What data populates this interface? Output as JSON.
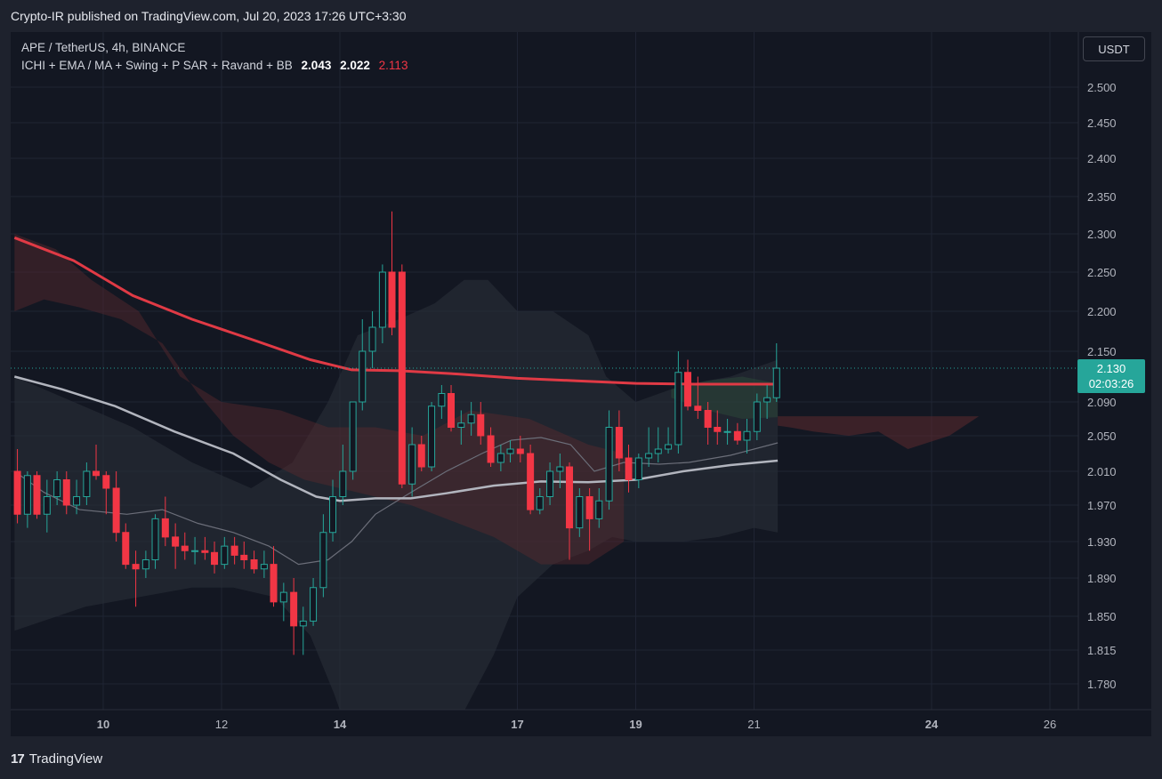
{
  "header": {
    "published_text": "Crypto-IR published on TradingView.com, Jul 20, 2023 17:26 UTC+3:30"
  },
  "legend": {
    "symbol_line": "APE / TetherUS, 4h, BINANCE",
    "indicators_label": "ICHI + EMA / MA + Swing + P SAR + Ravand  + BB",
    "value_a": "2.043",
    "value_b": "2.022",
    "value_c": "2.113"
  },
  "currency_button": "USDT",
  "price_tag": {
    "price": "2.130",
    "countdown": "02:03:26"
  },
  "footer": {
    "brand": "TradingView",
    "brand_mark": "17"
  },
  "colors": {
    "background": "#131722",
    "bull": "#26a69a",
    "bear": "#f23645",
    "ema": "#e03a45",
    "ma": "#b2b5be",
    "cloud_bear": "#5c2a2e",
    "cloud_bull": "#2c4a3a"
  },
  "chart_data": {
    "type": "candlestick",
    "symbol": "APE / TetherUS",
    "timeframe": "4h",
    "exchange": "BINANCE",
    "y_ticks": [
      "2.500",
      "2.450",
      "2.400",
      "2.350",
      "2.300",
      "2.250",
      "2.200",
      "2.150",
      "2.090",
      "2.050",
      "2.010",
      "1.970",
      "1.930",
      "1.890",
      "1.850",
      "1.815",
      "1.780"
    ],
    "x_ticks": [
      "10",
      "12",
      "14",
      "17",
      "19",
      "21",
      "24",
      "26"
    ],
    "current_price": 2.13,
    "candles": [
      {
        "x": 8.55,
        "o": 2.01,
        "h": 2.035,
        "l": 1.95,
        "c": 1.96
      },
      {
        "x": 8.72,
        "o": 1.96,
        "h": 2.01,
        "l": 1.945,
        "c": 2.005
      },
      {
        "x": 8.88,
        "o": 2.005,
        "h": 2.01,
        "l": 1.955,
        "c": 1.96
      },
      {
        "x": 9.05,
        "o": 1.96,
        "h": 2.0,
        "l": 1.94,
        "c": 1.98
      },
      {
        "x": 9.22,
        "o": 1.98,
        "h": 2.01,
        "l": 1.97,
        "c": 2.0
      },
      {
        "x": 9.38,
        "o": 2.0,
        "h": 2.01,
        "l": 1.96,
        "c": 1.97
      },
      {
        "x": 9.55,
        "o": 1.97,
        "h": 2.0,
        "l": 1.96,
        "c": 1.98
      },
      {
        "x": 9.72,
        "o": 1.98,
        "h": 2.02,
        "l": 1.97,
        "c": 2.01
      },
      {
        "x": 9.88,
        "o": 2.01,
        "h": 2.04,
        "l": 2.0,
        "c": 2.005
      },
      {
        "x": 10.05,
        "o": 2.005,
        "h": 2.01,
        "l": 1.96,
        "c": 1.99
      },
      {
        "x": 10.22,
        "o": 1.99,
        "h": 2.01,
        "l": 1.93,
        "c": 1.94
      },
      {
        "x": 10.38,
        "o": 1.94,
        "h": 1.95,
        "l": 1.9,
        "c": 1.905
      },
      {
        "x": 10.55,
        "o": 1.905,
        "h": 1.92,
        "l": 1.86,
        "c": 1.9
      },
      {
        "x": 10.72,
        "o": 1.9,
        "h": 1.92,
        "l": 1.89,
        "c": 1.91
      },
      {
        "x": 10.88,
        "o": 1.91,
        "h": 1.96,
        "l": 1.9,
        "c": 1.955
      },
      {
        "x": 11.05,
        "o": 1.955,
        "h": 1.98,
        "l": 1.925,
        "c": 1.935
      },
      {
        "x": 11.22,
        "o": 1.935,
        "h": 1.95,
        "l": 1.9,
        "c": 1.925
      },
      {
        "x": 11.38,
        "o": 1.925,
        "h": 1.94,
        "l": 1.91,
        "c": 1.92
      },
      {
        "x": 11.55,
        "o": 1.92,
        "h": 1.935,
        "l": 1.905,
        "c": 1.92
      },
      {
        "x": 11.72,
        "o": 1.92,
        "h": 1.935,
        "l": 1.91,
        "c": 1.918
      },
      {
        "x": 11.88,
        "o": 1.918,
        "h": 1.93,
        "l": 1.895,
        "c": 1.905
      },
      {
        "x": 12.05,
        "o": 1.905,
        "h": 1.935,
        "l": 1.9,
        "c": 1.925
      },
      {
        "x": 12.22,
        "o": 1.925,
        "h": 1.935,
        "l": 1.905,
        "c": 1.915
      },
      {
        "x": 12.38,
        "o": 1.915,
        "h": 1.93,
        "l": 1.9,
        "c": 1.91
      },
      {
        "x": 12.55,
        "o": 1.91,
        "h": 1.92,
        "l": 1.895,
        "c": 1.9
      },
      {
        "x": 12.72,
        "o": 1.9,
        "h": 1.92,
        "l": 1.89,
        "c": 1.905
      },
      {
        "x": 12.88,
        "o": 1.905,
        "h": 1.925,
        "l": 1.86,
        "c": 1.865
      },
      {
        "x": 13.05,
        "o": 1.865,
        "h": 1.885,
        "l": 1.845,
        "c": 1.875
      },
      {
        "x": 13.22,
        "o": 1.875,
        "h": 1.89,
        "l": 1.81,
        "c": 1.84
      },
      {
        "x": 13.38,
        "o": 1.84,
        "h": 1.86,
        "l": 1.81,
        "c": 1.845
      },
      {
        "x": 13.55,
        "o": 1.845,
        "h": 1.89,
        "l": 1.84,
        "c": 1.88
      },
      {
        "x": 13.72,
        "o": 1.88,
        "h": 1.96,
        "l": 1.87,
        "c": 1.94
      },
      {
        "x": 13.88,
        "o": 1.94,
        "h": 2.0,
        "l": 1.93,
        "c": 1.98
      },
      {
        "x": 14.05,
        "o": 1.98,
        "h": 2.04,
        "l": 1.97,
        "c": 2.01
      },
      {
        "x": 14.22,
        "o": 2.01,
        "h": 2.09,
        "l": 2.0,
        "c": 2.09
      },
      {
        "x": 14.38,
        "o": 2.09,
        "h": 2.19,
        "l": 2.08,
        "c": 2.15
      },
      {
        "x": 14.55,
        "o": 2.15,
        "h": 2.2,
        "l": 2.13,
        "c": 2.18
      },
      {
        "x": 14.72,
        "o": 2.18,
        "h": 2.26,
        "l": 2.16,
        "c": 2.25
      },
      {
        "x": 14.88,
        "o": 2.25,
        "h": 2.33,
        "l": 2.17,
        "c": 2.18
      },
      {
        "x": 15.05,
        "o": 2.25,
        "h": 2.26,
        "l": 1.99,
        "c": 1.995
      },
      {
        "x": 15.22,
        "o": 1.995,
        "h": 2.06,
        "l": 1.98,
        "c": 2.04
      },
      {
        "x": 15.38,
        "o": 2.04,
        "h": 2.05,
        "l": 2.01,
        "c": 2.015
      },
      {
        "x": 15.55,
        "o": 2.015,
        "h": 2.09,
        "l": 2.01,
        "c": 2.085
      },
      {
        "x": 15.72,
        "o": 2.085,
        "h": 2.11,
        "l": 2.07,
        "c": 2.1
      },
      {
        "x": 15.88,
        "o": 2.1,
        "h": 2.11,
        "l": 2.055,
        "c": 2.06
      },
      {
        "x": 16.05,
        "o": 2.06,
        "h": 2.08,
        "l": 2.04,
        "c": 2.065
      },
      {
        "x": 16.22,
        "o": 2.065,
        "h": 2.09,
        "l": 2.05,
        "c": 2.075
      },
      {
        "x": 16.38,
        "o": 2.075,
        "h": 2.09,
        "l": 2.04,
        "c": 2.05
      },
      {
        "x": 16.55,
        "o": 2.05,
        "h": 2.06,
        "l": 2.015,
        "c": 2.02
      },
      {
        "x": 16.72,
        "o": 2.02,
        "h": 2.04,
        "l": 2.01,
        "c": 2.03
      },
      {
        "x": 16.88,
        "o": 2.03,
        "h": 2.045,
        "l": 2.02,
        "c": 2.035
      },
      {
        "x": 17.05,
        "o": 2.035,
        "h": 2.05,
        "l": 2.02,
        "c": 2.03
      },
      {
        "x": 17.22,
        "o": 2.03,
        "h": 2.04,
        "l": 1.96,
        "c": 1.965
      },
      {
        "x": 17.38,
        "o": 1.965,
        "h": 1.99,
        "l": 1.96,
        "c": 1.98
      },
      {
        "x": 17.55,
        "o": 1.98,
        "h": 2.02,
        "l": 1.97,
        "c": 2.01
      },
      {
        "x": 17.72,
        "o": 2.01,
        "h": 2.03,
        "l": 1.99,
        "c": 2.015
      },
      {
        "x": 17.88,
        "o": 2.015,
        "h": 2.02,
        "l": 1.91,
        "c": 1.945
      },
      {
        "x": 18.05,
        "o": 1.945,
        "h": 1.99,
        "l": 1.935,
        "c": 1.98
      },
      {
        "x": 18.22,
        "o": 1.98,
        "h": 1.99,
        "l": 1.92,
        "c": 1.955
      },
      {
        "x": 18.38,
        "o": 1.955,
        "h": 1.99,
        "l": 1.945,
        "c": 1.975
      },
      {
        "x": 18.55,
        "o": 1.975,
        "h": 2.08,
        "l": 1.965,
        "c": 2.06
      },
      {
        "x": 18.72,
        "o": 2.06,
        "h": 2.08,
        "l": 2.01,
        "c": 2.025
      },
      {
        "x": 18.88,
        "o": 2.025,
        "h": 2.04,
        "l": 1.985,
        "c": 2.0
      },
      {
        "x": 19.05,
        "o": 2.0,
        "h": 2.03,
        "l": 1.99,
        "c": 2.025
      },
      {
        "x": 19.22,
        "o": 2.025,
        "h": 2.06,
        "l": 2.015,
        "c": 2.03
      },
      {
        "x": 19.38,
        "o": 2.03,
        "h": 2.06,
        "l": 2.02,
        "c": 2.035
      },
      {
        "x": 19.55,
        "o": 2.035,
        "h": 2.06,
        "l": 2.03,
        "c": 2.04
      },
      {
        "x": 19.72,
        "o": 2.04,
        "h": 2.15,
        "l": 2.03,
        "c": 2.125
      },
      {
        "x": 19.88,
        "o": 2.125,
        "h": 2.14,
        "l": 2.08,
        "c": 2.085
      },
      {
        "x": 20.05,
        "o": 2.085,
        "h": 2.12,
        "l": 2.07,
        "c": 2.08
      },
      {
        "x": 20.22,
        "o": 2.08,
        "h": 2.09,
        "l": 2.04,
        "c": 2.06
      },
      {
        "x": 20.38,
        "o": 2.06,
        "h": 2.08,
        "l": 2.04,
        "c": 2.055
      },
      {
        "x": 20.55,
        "o": 2.055,
        "h": 2.07,
        "l": 2.04,
        "c": 2.055
      },
      {
        "x": 20.72,
        "o": 2.055,
        "h": 2.065,
        "l": 2.04,
        "c": 2.045
      },
      {
        "x": 20.88,
        "o": 2.045,
        "h": 2.07,
        "l": 2.03,
        "c": 2.055
      },
      {
        "x": 21.05,
        "o": 2.055,
        "h": 2.1,
        "l": 2.045,
        "c": 2.09
      },
      {
        "x": 21.22,
        "o": 2.09,
        "h": 2.11,
        "l": 2.07,
        "c": 2.095
      },
      {
        "x": 21.38,
        "o": 2.095,
        "h": 2.16,
        "l": 2.09,
        "c": 2.13
      }
    ],
    "ema_line": [
      [
        8.5,
        2.295
      ],
      [
        9.5,
        2.265
      ],
      [
        10.5,
        2.22
      ],
      [
        11.5,
        2.19
      ],
      [
        12.5,
        2.165
      ],
      [
        13.5,
        2.14
      ],
      [
        14.2,
        2.128
      ],
      [
        15.0,
        2.127
      ],
      [
        16.0,
        2.123
      ],
      [
        17.0,
        2.118
      ],
      [
        18.0,
        2.115
      ],
      [
        19.0,
        2.112
      ],
      [
        20.0,
        2.111
      ],
      [
        21.4,
        2.111
      ]
    ],
    "ma_line": [
      [
        8.5,
        2.12
      ],
      [
        9.3,
        2.105
      ],
      [
        10.2,
        2.085
      ],
      [
        11.2,
        2.055
      ],
      [
        12.2,
        2.03
      ],
      [
        13.0,
        2.0
      ],
      [
        13.6,
        1.98
      ],
      [
        14.0,
        1.975
      ],
      [
        14.6,
        1.978
      ],
      [
        15.2,
        1.978
      ],
      [
        15.8,
        1.984
      ],
      [
        16.6,
        1.993
      ],
      [
        17.4,
        1.998
      ],
      [
        18.2,
        1.997
      ],
      [
        19.0,
        2.0
      ],
      [
        19.8,
        2.01
      ],
      [
        20.6,
        2.017
      ],
      [
        21.4,
        2.022
      ]
    ]
  }
}
